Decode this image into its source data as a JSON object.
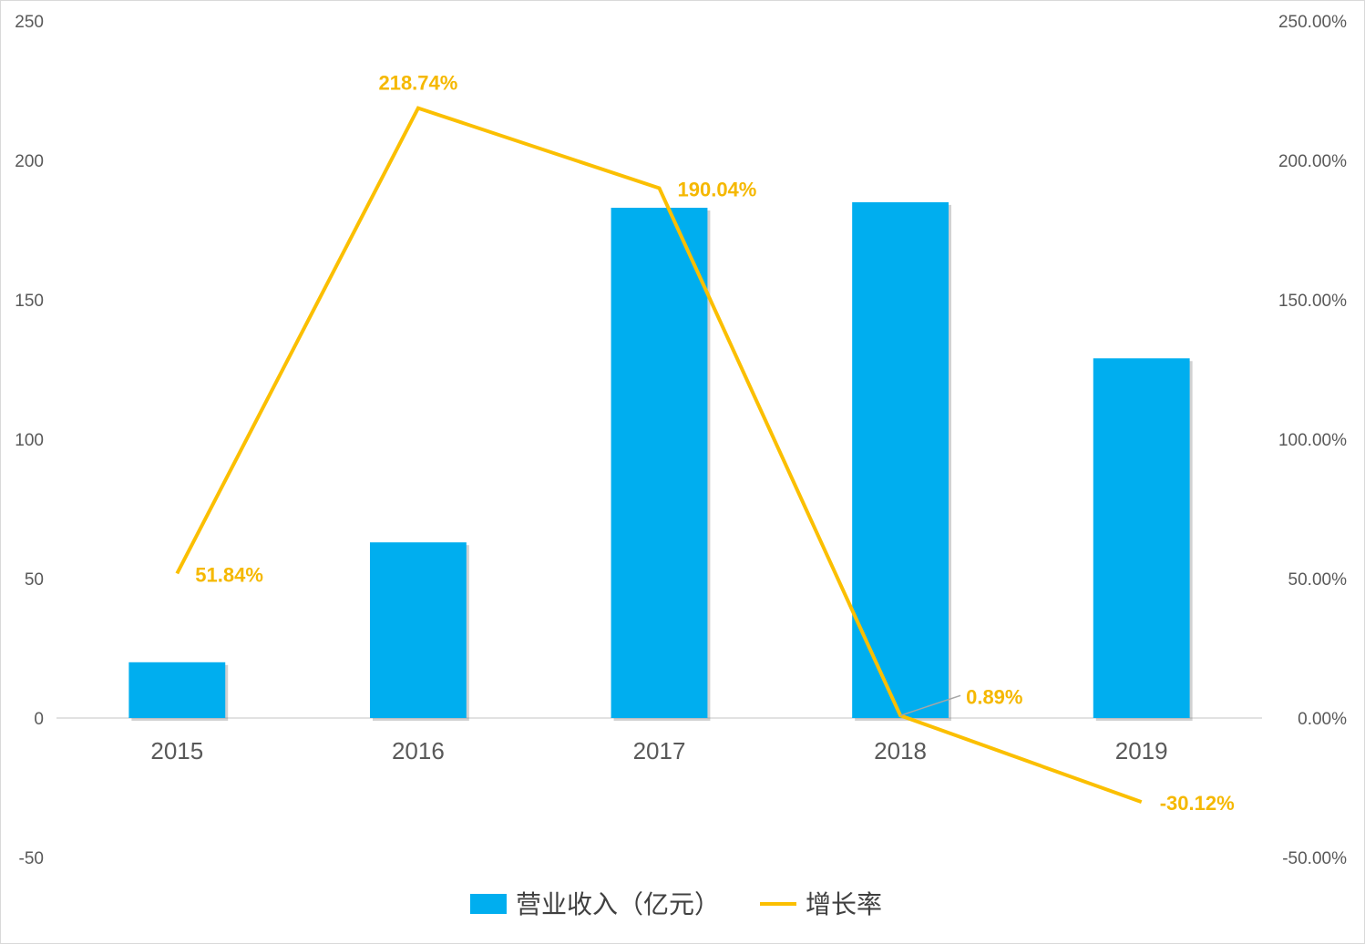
{
  "chart_data": {
    "type": "bar+line",
    "categories": [
      "2015",
      "2016",
      "2017",
      "2018",
      "2019"
    ],
    "series": [
      {
        "name": "营业收入（亿元）",
        "type": "bar",
        "axis": "left",
        "color": "#00aeef",
        "values": [
          20,
          63,
          183,
          185,
          129
        ]
      },
      {
        "name": "增长率",
        "type": "line",
        "axis": "right",
        "color": "#fbbf00",
        "values": [
          51.84,
          218.74,
          190.04,
          0.89,
          -30.12
        ],
        "labels": [
          "51.84%",
          "218.74%",
          "190.04%",
          "0.89%",
          "-30.12%"
        ]
      }
    ],
    "left_axis": {
      "ylim": [
        -50,
        250
      ],
      "ticks": [
        "250",
        "200",
        "150",
        "100",
        "50",
        "0",
        "-50"
      ]
    },
    "right_axis": {
      "ylim": [
        -50,
        250
      ],
      "ticks": [
        "250.00%",
        "200.00%",
        "150.00%",
        "100.00%",
        "50.00%",
        "0.00%",
        "-50.00%"
      ]
    },
    "legend_position": "bottom",
    "grid": false
  }
}
